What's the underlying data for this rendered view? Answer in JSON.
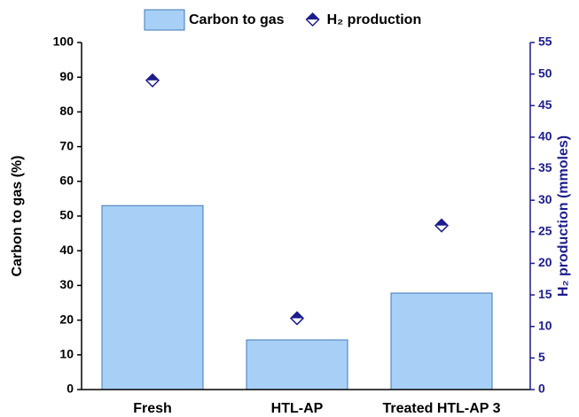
{
  "chart_data": {
    "type": "bar",
    "categories": [
      "Fresh",
      "HTL-AP",
      "Treated HTL-AP 3"
    ],
    "series": [
      {
        "name": "Carbon to gas",
        "type": "bar",
        "color": "#a8d0f7",
        "values": [
          53,
          14.3,
          27.8
        ]
      },
      {
        "name": "H₂ production",
        "type": "scatter",
        "axis": "y2",
        "color": "#1c1c8c",
        "values": [
          49,
          11.3,
          26
        ]
      }
    ],
    "ylabel": "Carbon to gas (%)",
    "y2label": "H₂ production (mmoles)",
    "ylim": [
      0,
      100
    ],
    "yticks": [
      0,
      10,
      20,
      30,
      40,
      50,
      60,
      70,
      80,
      90,
      100
    ],
    "y2lim": [
      0,
      55
    ],
    "y2ticks": [
      0,
      5,
      10,
      15,
      20,
      25,
      30,
      35,
      40,
      45,
      50,
      55
    ],
    "legend": "top"
  }
}
